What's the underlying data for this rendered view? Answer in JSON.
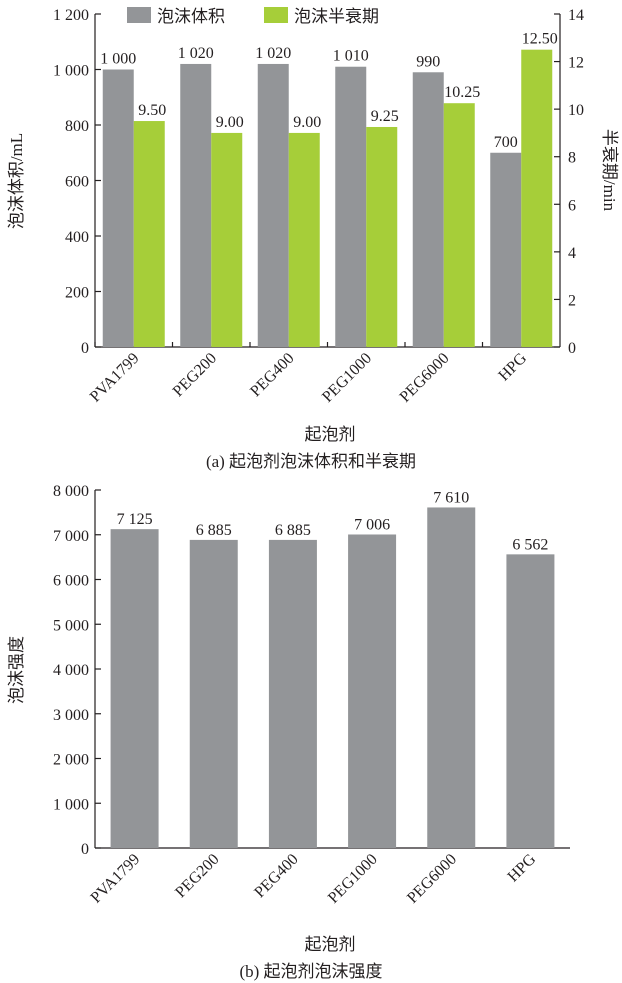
{
  "chart_data": [
    {
      "type": "bar",
      "caption": "(a) 起泡剂泡沫体积和半衰期",
      "xlabel": "起泡剂",
      "ylabel": "泡沫体积/mL",
      "y2label": "半衰期/min",
      "categories": [
        "PVA1799",
        "PEG200",
        "PEG400",
        "PEG1000",
        "PEG6000",
        "HPG"
      ],
      "ylim": [
        0,
        1200
      ],
      "yticks": [
        0,
        200,
        400,
        600,
        800,
        1000,
        1200
      ],
      "ytick_labels": [
        "0",
        "200",
        "400",
        "600",
        "800",
        "1 000",
        "1 200"
      ],
      "y2lim": [
        0,
        14
      ],
      "y2ticks": [
        0,
        2,
        4,
        6,
        8,
        10,
        12,
        14
      ],
      "y2tick_labels": [
        "0",
        "2",
        "4",
        "6",
        "8",
        "10",
        "12",
        "14"
      ],
      "legend_position": "top-center",
      "series": [
        {
          "name": "泡沫体积",
          "axis": "left",
          "color": "#939598",
          "values": [
            1000,
            1020,
            1020,
            1010,
            990,
            700
          ],
          "labels": [
            "1 000",
            "1 020",
            "1 020",
            "1 010",
            "990",
            "700"
          ]
        },
        {
          "name": "泡沫半衰期",
          "axis": "right",
          "color": "#a6ce39",
          "values": [
            9.5,
            9.0,
            9.0,
            9.25,
            10.25,
            12.5
          ],
          "labels": [
            "9.50",
            "9.00",
            "9.00",
            "9.25",
            "10.25",
            "12.50"
          ]
        }
      ]
    },
    {
      "type": "bar",
      "caption": "(b) 起泡剂泡沫强度",
      "xlabel": "起泡剂",
      "ylabel": "泡沫强度",
      "categories": [
        "PVA1799",
        "PEG200",
        "PEG400",
        "PEG1000",
        "PEG6000",
        "HPG"
      ],
      "ylim": [
        0,
        8000
      ],
      "yticks": [
        0,
        1000,
        2000,
        3000,
        4000,
        5000,
        6000,
        7000,
        8000
      ],
      "ytick_labels": [
        "0",
        "1 000",
        "2 000",
        "3 000",
        "4 000",
        "5 000",
        "6 000",
        "7 000",
        "8 000"
      ],
      "series": [
        {
          "color": "#939598",
          "values": [
            7125,
            6885,
            6885,
            7006,
            7610,
            6562
          ],
          "labels": [
            "7 125",
            "6 885",
            "6 885",
            "7 006",
            "7 610",
            "6 562"
          ]
        }
      ]
    }
  ]
}
